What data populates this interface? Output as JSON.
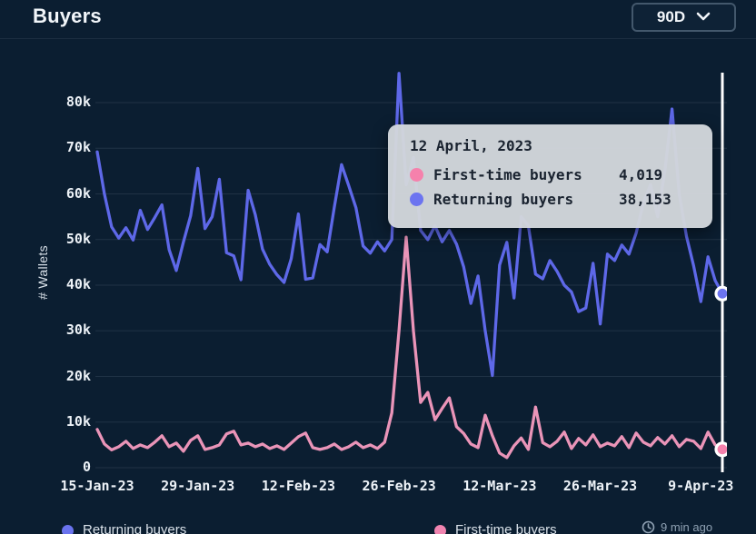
{
  "header": {
    "title": "Buyers",
    "range_selector": {
      "value": "90D"
    }
  },
  "tooltip": {
    "date": "12 April, 2023",
    "rows": [
      {
        "label": "First-time buyers",
        "value": "4,019",
        "color": "#f581ac"
      },
      {
        "label": "Returning buyers",
        "value": "38,153",
        "color": "#6c74f0"
      }
    ]
  },
  "legend": {
    "items": [
      {
        "label": "Returning buyers",
        "color": "#6a73ee"
      },
      {
        "label": "First-time buyers",
        "color": "#f084b0"
      }
    ]
  },
  "status": {
    "last_updated": "9 min ago"
  },
  "chart_data": {
    "type": "line",
    "title": "Buyers",
    "xlabel": "",
    "ylabel": "# Wallets",
    "ylim": [
      0,
      80000
    ],
    "grid": "horizontal",
    "legend_position": "bottom",
    "y_ticks": [
      {
        "value": 0,
        "label": "0"
      },
      {
        "value": 10000,
        "label": "10k"
      },
      {
        "value": 20000,
        "label": "20k"
      },
      {
        "value": 30000,
        "label": "30k"
      },
      {
        "value": 40000,
        "label": "40k"
      },
      {
        "value": 50000,
        "label": "50k"
      },
      {
        "value": 60000,
        "label": "60k"
      },
      {
        "value": 70000,
        "label": "70k"
      },
      {
        "value": 80000,
        "label": "80k"
      }
    ],
    "x_ticks": [
      {
        "day": 0,
        "label": "15-Jan-23"
      },
      {
        "day": 14,
        "label": "29-Jan-23"
      },
      {
        "day": 28,
        "label": "12-Feb-23"
      },
      {
        "day": 42,
        "label": "26-Feb-23"
      },
      {
        "day": 56,
        "label": "12-Mar-23"
      },
      {
        "day": 70,
        "label": "26-Mar-23"
      },
      {
        "day": 84,
        "label": "9-Apr-23"
      }
    ],
    "series": [
      {
        "name": "Returning buyers",
        "color": "#5e68e8",
        "values": [
          69200,
          60000,
          52800,
          50300,
          52600,
          49900,
          56400,
          52200,
          54800,
          57600,
          47800,
          43200,
          49500,
          55200,
          65600,
          52400,
          55000,
          63200,
          47100,
          46400,
          41200,
          60800,
          55400,
          47900,
          44600,
          42300,
          40600,
          45800,
          55600,
          41300,
          41600,
          48900,
          47300,
          57200,
          66400,
          61800,
          57000,
          48600,
          47000,
          49500,
          47500,
          50000,
          86400,
          62000,
          68000,
          52000,
          50000,
          53000,
          49500,
          52000,
          49000,
          44000,
          36000,
          42000,
          30000,
          20200,
          44400,
          49400,
          37200,
          55000,
          53000,
          42400,
          41400,
          45400,
          43000,
          40000,
          38500,
          34200,
          35000,
          44800,
          31500,
          46800,
          45400,
          48800,
          46800,
          51400,
          58000,
          62000,
          55000,
          65000,
          78600,
          60000,
          50700,
          44200,
          36400,
          46200,
          41000,
          38153
        ]
      },
      {
        "name": "First-time buyers",
        "color": "#ea94b8",
        "values": [
          8400,
          5200,
          3900,
          4600,
          5800,
          4200,
          5000,
          4400,
          5600,
          7000,
          4600,
          5400,
          3600,
          6000,
          7000,
          4000,
          4400,
          5000,
          7400,
          8000,
          5000,
          5400,
          4600,
          5200,
          4200,
          4800,
          4000,
          5400,
          6800,
          7600,
          4400,
          4000,
          4400,
          5200,
          4000,
          4600,
          5600,
          4400,
          5000,
          4200,
          5600,
          12000,
          30000,
          50500,
          30000,
          14300,
          16500,
          10500,
          13000,
          15300,
          9000,
          7500,
          5200,
          4400,
          11500,
          7000,
          3200,
          2200,
          4800,
          6500,
          4000,
          13300,
          5500,
          4600,
          5800,
          7800,
          4200,
          6400,
          5000,
          7200,
          4600,
          5400,
          4800,
          6800,
          4400,
          7600,
          5600,
          4800,
          6600,
          5200,
          7000,
          4600,
          6200,
          5800,
          4200,
          7800,
          5000,
          4019
        ]
      }
    ],
    "crosshair": {
      "index": 87,
      "date": "12 April, 2023",
      "values": {
        "First-time buyers": 4019,
        "Returning buyers": 38153
      }
    }
  }
}
